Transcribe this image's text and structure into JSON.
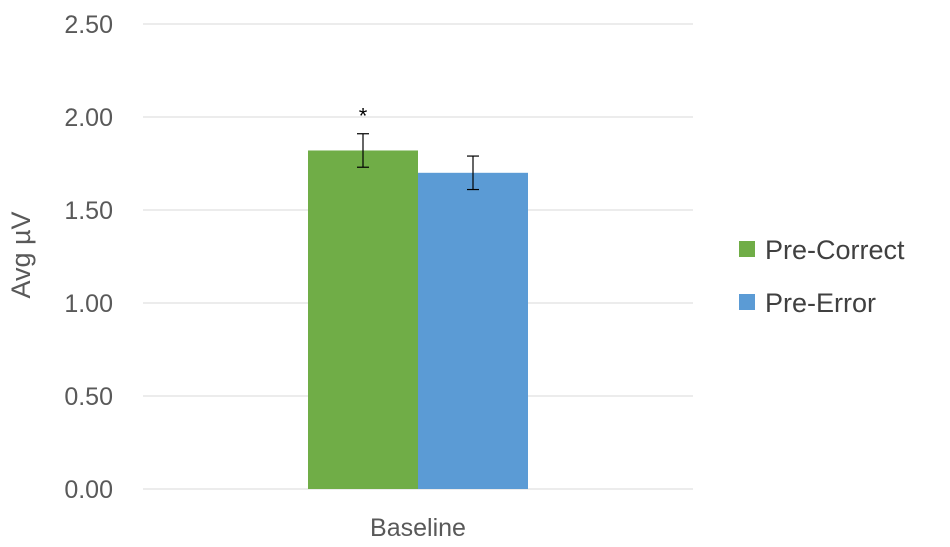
{
  "chart_data": {
    "type": "bar",
    "categories": [
      "Baseline"
    ],
    "series": [
      {
        "name": "Pre-Correct",
        "values": [
          1.82
        ],
        "error": [
          0.09
        ],
        "color": "#70ad47"
      },
      {
        "name": "Pre-Error",
        "values": [
          1.7
        ],
        "error": [
          0.09
        ],
        "color": "#5b9bd5"
      }
    ],
    "title": "",
    "xlabel": "",
    "ylabel": "Avg µV",
    "ylim": [
      0,
      2.5
    ],
    "yticks": [
      "0.00",
      "0.50",
      "1.00",
      "1.50",
      "2.00",
      "2.50"
    ],
    "grid": true,
    "legend_position": "right",
    "annotations": [
      {
        "text": "*",
        "series": "Pre-Correct",
        "category": "Baseline"
      }
    ]
  }
}
